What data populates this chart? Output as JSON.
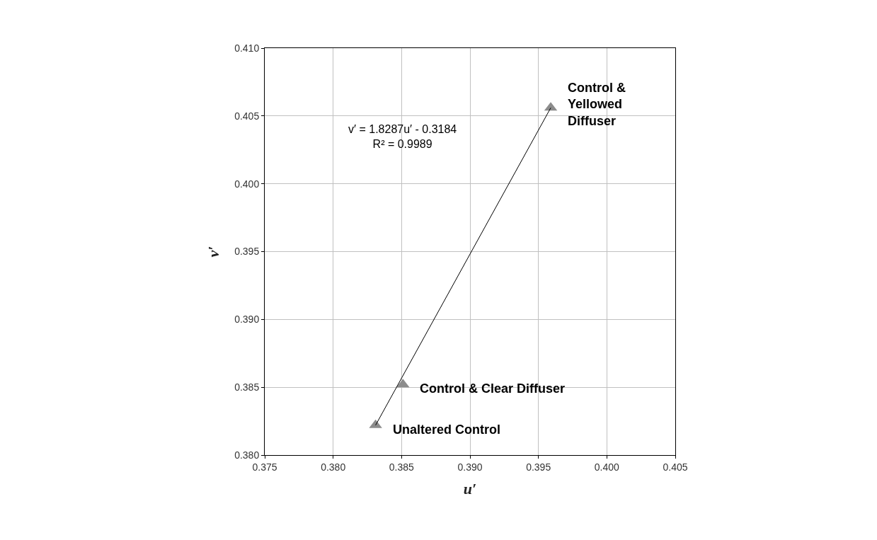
{
  "chart_data": {
    "type": "scatter",
    "xlabel": "u′",
    "ylabel": "v′",
    "xlim": [
      0.375,
      0.405
    ],
    "xticks": [
      {
        "value": 0.375,
        "label": "0.375"
      },
      {
        "value": 0.38,
        "label": "0.380"
      },
      {
        "value": 0.385,
        "label": "0.385"
      },
      {
        "value": 0.39,
        "label": "0.390"
      },
      {
        "value": 0.395,
        "label": "0.395"
      },
      {
        "value": 0.4,
        "label": "0.400"
      },
      {
        "value": 0.405,
        "label": "0.405"
      }
    ],
    "ylim": [
      0.38,
      0.41
    ],
    "yticks": [
      {
        "value": 0.38,
        "label": "0.380"
      },
      {
        "value": 0.385,
        "label": "0.385"
      },
      {
        "value": 0.39,
        "label": "0.390"
      },
      {
        "value": 0.395,
        "label": "0.395"
      },
      {
        "value": 0.4,
        "label": "0.400"
      },
      {
        "value": 0.405,
        "label": "0.405"
      },
      {
        "value": 0.41,
        "label": "0.410"
      }
    ],
    "grid": true,
    "series": [
      {
        "marker": "triangle",
        "color": "#8c8c8c",
        "x": [
          0.3831,
          0.3851,
          0.3959
        ],
        "values": [
          0.3822,
          0.3852,
          0.4056
        ]
      },
      {
        "type": "line",
        "color": "#000000",
        "x": [
          0.3831,
          0.3959
        ],
        "values": [
          0.3822,
          0.4056
        ]
      }
    ],
    "annotations": [
      {
        "text": "Unaltered Control",
        "x": 0.3831,
        "y": 0.3822
      },
      {
        "text": "Control & Clear Diffuser",
        "x": 0.3851,
        "y": 0.3852
      },
      {
        "text": "Control &\nYellowed\nDiffuser",
        "x": 0.3959,
        "y": 0.4056
      },
      "v′ = 1.8287u′ - 0.3184\nR² = 0.9989"
    ]
  }
}
